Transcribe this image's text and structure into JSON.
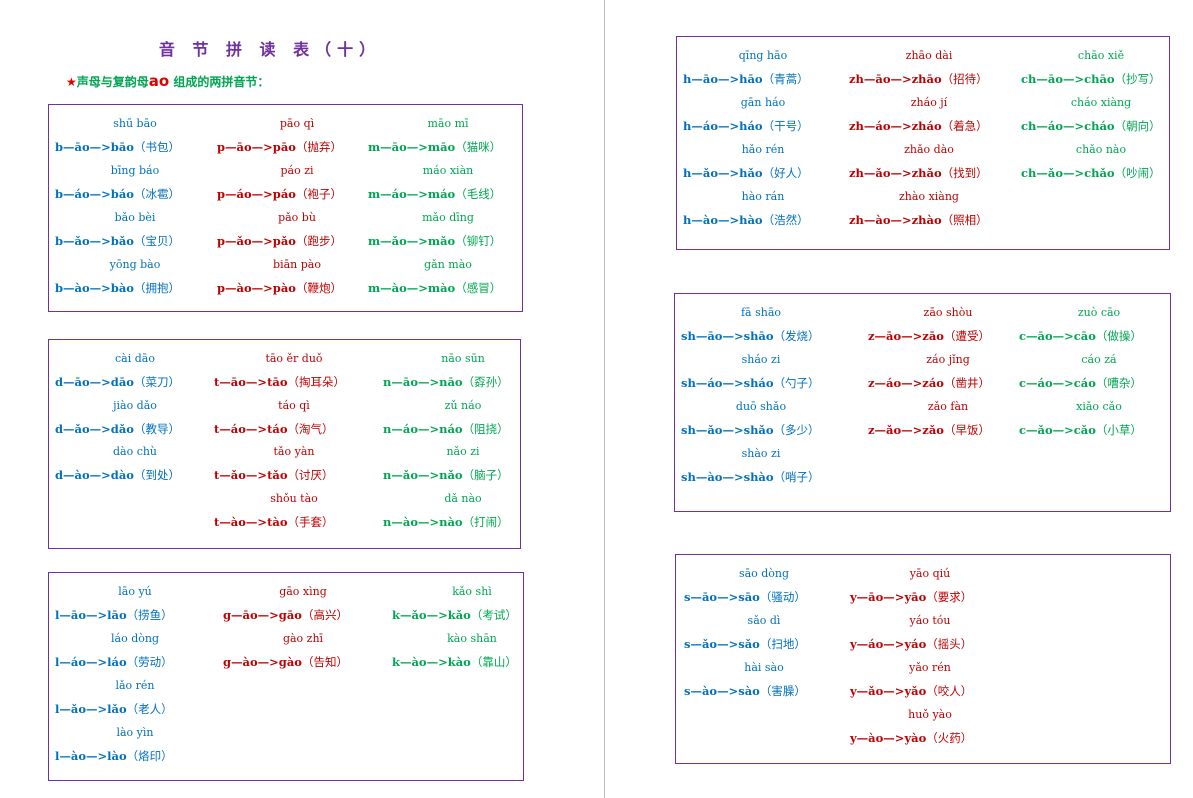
{
  "title": "音 节 拼 读 表（十）",
  "subtitle": {
    "star": "★",
    "pre": "声母与复韵母",
    "hl": "ao",
    "post": " 组成的两拼音节："
  },
  "colors": {
    "blue": "#0070c0",
    "red": "#c00000",
    "green": "#00a651",
    "border": "#7030a0"
  },
  "boxes": [
    {
      "items": [
        {
          "py": "shū bāo",
          "rule": "b—āo—>bāo",
          "word": "（书包）",
          "color": "blue"
        },
        {
          "py": "pāo qì",
          "rule": "p—āo—>pāo",
          "word": "（抛弃）",
          "color": "red"
        },
        {
          "py": "māo mī",
          "rule": "m—āo—>māo",
          "word": "（猫咪）",
          "color": "green"
        },
        {
          "py": "bīng báo",
          "rule": "b—áo—>báo",
          "word": "（冰雹）",
          "color": "blue"
        },
        {
          "py": "páo zi",
          "rule": "p—áo—>páo",
          "word": "（袍子）",
          "color": "red"
        },
        {
          "py": "máo xiàn",
          "rule": "m—áo—>máo",
          "word": "（毛线）",
          "color": "green"
        },
        {
          "py": "bǎo bèi",
          "rule": "b—ǎo—>bǎo",
          "word": "（宝贝）",
          "color": "blue"
        },
        {
          "py": "pǎo bù",
          "rule": "p—ǎo—>pǎo",
          "word": "（跑步）",
          "color": "red"
        },
        {
          "py": "mǎo dīng",
          "rule": "m—ǎo—>mǎo",
          "word": "（铆钉）",
          "color": "green"
        },
        {
          "py": "yōng bào",
          "rule": "b—ào—>bào",
          "word": "（拥抱）",
          "color": "blue"
        },
        {
          "py": "biān pào",
          "rule": "p—ào—>pào",
          "word": "（鞭炮）",
          "color": "red"
        },
        {
          "py": "gǎn mào",
          "rule": "m—ào—>mào",
          "word": "（感冒）",
          "color": "green"
        }
      ]
    },
    {
      "items": [
        {
          "py": "cài dāo",
          "rule": "d—āo—>dāo",
          "word": "（菜刀）",
          "color": "blue"
        },
        {
          "py": "tāo ěr duǒ",
          "rule": "t—āo—>tāo",
          "word": "（掏耳朵）",
          "color": "red"
        },
        {
          "py": "nāo sūn",
          "rule": "n—āo—>nāo",
          "word": "（孬孙）",
          "color": "green"
        },
        {
          "py": "jiào dǎo",
          "rule": "d—ǎo—>dǎo",
          "word": "（教导）",
          "color": "blue"
        },
        {
          "py": "táo qì",
          "rule": "t—áo—>táo",
          "word": "（淘气）",
          "color": "red"
        },
        {
          "py": "zǔ náo",
          "rule": "n—áo—>náo",
          "word": "（阻挠）",
          "color": "green"
        },
        {
          "py": "dào chù",
          "rule": "d—ào—>dào",
          "word": "（到处）",
          "color": "blue"
        },
        {
          "py": "tǎo yàn",
          "rule": "t—ǎo—>tǎo",
          "word": "（讨厌）",
          "color": "red"
        },
        {
          "py": "nǎo zi",
          "rule": "n—ǎo—>nǎo",
          "word": "（脑子）",
          "color": "green"
        },
        {
          "py": "shǒu tào",
          "rule": "t—ào—>tào",
          "word": "（手套）",
          "color": "red"
        },
        {
          "py": "dǎ nào",
          "rule": "n—ào—>nào",
          "word": "（打闹）",
          "color": "green"
        }
      ]
    },
    {
      "items": [
        {
          "py": "lāo yú",
          "rule": "l—āo—>lāo",
          "word": "（捞鱼）",
          "color": "blue"
        },
        {
          "py": "gāo xìng",
          "rule": "g—āo—>gāo",
          "word": "（高兴）",
          "color": "red"
        },
        {
          "py": "kǎo shì",
          "rule": "k—ǎo—>kǎo",
          "word": "（考试）",
          "color": "green"
        },
        {
          "py": "láo dòng",
          "rule": "l—áo—>láo",
          "word": "（劳动）",
          "color": "blue"
        },
        {
          "py": "gào zhī",
          "rule": "g—ào—>gào",
          "word": "（告知）",
          "color": "red"
        },
        {
          "py": "kào shān",
          "rule": "k—ào—>kào",
          "word": "（靠山）",
          "color": "green"
        },
        {
          "py": "lǎo rén",
          "rule": "l—ǎo—>lǎo",
          "word": "（老人）",
          "color": "blue"
        },
        {
          "py": "lào yìn",
          "rule": "l—ào—>lào",
          "word": "（烙印）",
          "color": "blue"
        }
      ]
    },
    {
      "items": [
        {
          "py": "qīng hāo",
          "rule": "h—āo—>hāo",
          "word": "（青蒿）",
          "color": "blue"
        },
        {
          "py": "zhāo dài",
          "rule": "zh—āo—>zhāo",
          "word": "（招待）",
          "color": "red"
        },
        {
          "py": "chāo xiě",
          "rule": "ch—āo—>chāo",
          "word": "（抄写）",
          "color": "green"
        },
        {
          "py": "gān háo",
          "rule": "h—áo—>háo",
          "word": "（干号）",
          "color": "blue"
        },
        {
          "py": "zháo jí",
          "rule": "zh—áo—>zháo",
          "word": "（着急）",
          "color": "red"
        },
        {
          "py": "cháo xiàng",
          "rule": "ch—áo—>cháo",
          "word": "（朝向）",
          "color": "green"
        },
        {
          "py": "hǎo rén",
          "rule": "h—ǎo—>hǎo",
          "word": "（好人）",
          "color": "blue"
        },
        {
          "py": "zhǎo dào",
          "rule": "zh—ǎo—>zhǎo",
          "word": "（找到）",
          "color": "red"
        },
        {
          "py": "chǎo nào",
          "rule": "ch—ǎo—>chǎo",
          "word": "（吵闹）",
          "color": "green"
        },
        {
          "py": "hào rán",
          "rule": "h—ào—>hào",
          "word": "（浩然）",
          "color": "blue"
        },
        {
          "py": "zhào xiàng",
          "rule": "zh—ào—>zhào",
          "word": "（照相）",
          "color": "red"
        }
      ]
    },
    {
      "items": [
        {
          "py": "fā shāo",
          "rule": "sh—āo—>shāo",
          "word": "（发烧）",
          "color": "blue"
        },
        {
          "py": "zāo shòu",
          "rule": "z—āo—>zāo",
          "word": "（遭受）",
          "color": "red"
        },
        {
          "py": "zuò cāo",
          "rule": "c—āo—>cāo",
          "word": "（做操）",
          "color": "green"
        },
        {
          "py": "sháo zi",
          "rule": "sh—áo—>sháo",
          "word": "（勺子）",
          "color": "blue"
        },
        {
          "py": "záo jǐng",
          "rule": "z—áo—>záo",
          "word": "（凿井）",
          "color": "red"
        },
        {
          "py": "cáo zá",
          "rule": "c—áo—>cáo",
          "word": "（嘈杂）",
          "color": "green"
        },
        {
          "py": "duō shǎo",
          "rule": "sh—ǎo—>shǎo",
          "word": "（多少）",
          "color": "blue"
        },
        {
          "py": "zǎo fàn",
          "rule": "z—ǎo—>zǎo",
          "word": "（早饭）",
          "color": "red"
        },
        {
          "py": "xiǎo cǎo",
          "rule": "c—ǎo—>cǎo",
          "word": "（小草）",
          "color": "green"
        },
        {
          "py": "shào zi",
          "rule": "sh—ào—>shào",
          "word": "（哨子）",
          "color": "blue"
        }
      ]
    },
    {
      "items": [
        {
          "py": "sāo dòng",
          "rule": "s—āo—>sāo",
          "word": "（骚动）",
          "color": "blue"
        },
        {
          "py": "yāo qiú",
          "rule": "y—āo—>yāo",
          "word": "（要求）",
          "color": "red"
        },
        {
          "py": "sǎo dì",
          "rule": "s—ǎo—>sǎo",
          "word": "（扫地）",
          "color": "blue"
        },
        {
          "py": "yáo tóu",
          "rule": "y—áo—>yáo",
          "word": "（摇头）",
          "color": "red"
        },
        {
          "py": "hài sào",
          "rule": "s—ào—>sào",
          "word": "（害臊）",
          "color": "blue"
        },
        {
          "py": "yǎo rén",
          "rule": "y—ǎo—>yǎo",
          "word": "（咬人）",
          "color": "red"
        },
        {
          "py": "huǒ yào",
          "rule": "y—ào—>yào",
          "word": "（火药）",
          "color": "red"
        }
      ]
    }
  ]
}
